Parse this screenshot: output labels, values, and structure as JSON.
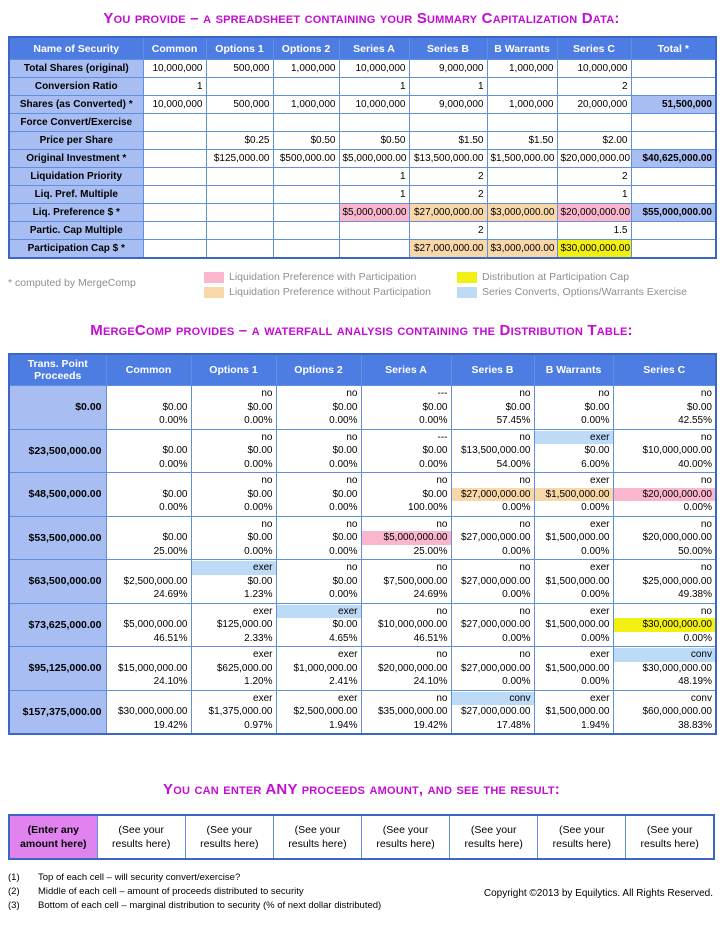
{
  "titles": {
    "provide": "You provide – a spreadsheet containing your Summary Capitalization Data:",
    "mergecomp": "MergeComp provides – a waterfall analysis containing the Distribution Table:",
    "enter": "You can enter ANY proceeds amount, and see the result:"
  },
  "colors": {
    "header_blue": "#4d7ce2",
    "label_periwinkle": "#a8bdf1",
    "pink": "#f9b6cd",
    "tan": "#f8d8a8",
    "yellow": "#f2ef12",
    "light_blue": "#bddaf6",
    "title_magenta": "#c40cd4",
    "enter_violet": "#e083ef"
  },
  "cap_table": {
    "headers": [
      "Name of Security",
      "Common",
      "Options 1",
      "Options 2",
      "Series A",
      "Series B",
      "B Warrants",
      "Series C",
      "Total *"
    ],
    "rows": [
      {
        "label": "Total Shares (original)",
        "cells": [
          "10,000,000",
          "500,000",
          "1,000,000",
          "10,000,000",
          "9,000,000",
          "1,000,000",
          "10,000,000",
          ""
        ]
      },
      {
        "label": "Conversion Ratio",
        "cells": [
          "1",
          "",
          "",
          "1",
          "1",
          "",
          "2",
          ""
        ]
      },
      {
        "label": "Shares (as Converted) *",
        "cells": [
          "10,000,000",
          "500,000",
          "1,000,000",
          "10,000,000",
          "9,000,000",
          "1,000,000",
          "20,000,000",
          {
            "text": "51,500,000",
            "bg": "periwinkle",
            "bold": true
          }
        ]
      },
      {
        "label": "Force Convert/Exercise",
        "cells": [
          "",
          "",
          "",
          "",
          "",
          "",
          "",
          ""
        ]
      },
      {
        "label": "Price per Share",
        "cells": [
          "",
          "$0.25",
          "$0.50",
          "$0.50",
          "$1.50",
          "$1.50",
          "$2.00",
          ""
        ]
      },
      {
        "label": "Original Investment *",
        "cells": [
          "",
          "$125,000.00",
          "$500,000.00",
          "$5,000,000.00",
          "$13,500,000.00",
          "$1,500,000.00",
          "$20,000,000.00",
          {
            "text": "$40,625,000.00",
            "bg": "periwinkle",
            "bold": true
          }
        ]
      },
      {
        "label": "Liquidation Priority",
        "cells": [
          "",
          "",
          "",
          "1",
          "2",
          "",
          "2",
          ""
        ]
      },
      {
        "label": "Liq. Pref. Multiple",
        "cells": [
          "",
          "",
          "",
          "1",
          "2",
          "",
          "1",
          ""
        ]
      },
      {
        "label": "Liq. Preference $ *",
        "cells": [
          "",
          "",
          "",
          {
            "text": "$5,000,000.00",
            "bg": "pink"
          },
          {
            "text": "$27,000,000.00",
            "bg": "tan"
          },
          {
            "text": "$3,000,000.00",
            "bg": "tan"
          },
          {
            "text": "$20,000,000.00",
            "bg": "pink"
          },
          {
            "text": "$55,000,000.00",
            "bg": "periwinkle",
            "bold": true
          }
        ]
      },
      {
        "label": "Partic. Cap Multiple",
        "cells": [
          "",
          "",
          "",
          "",
          "2",
          "",
          "1.5",
          ""
        ]
      },
      {
        "label": "Participation Cap $ *",
        "cells": [
          "",
          "",
          "",
          "",
          {
            "text": "$27,000,000.00",
            "bg": "tan"
          },
          {
            "text": "$3,000,000.00",
            "bg": "tan"
          },
          {
            "text": "$30,000,000.00",
            "bg": "yellow"
          },
          ""
        ]
      }
    ]
  },
  "legend": {
    "note": "* computed by MergeComp",
    "items": [
      {
        "color_key": "pink",
        "label": "Liquidation Preference with Participation"
      },
      {
        "color_key": "tan",
        "label": "Liquidation Preference without Participation"
      },
      {
        "color_key": "yellow",
        "label": "Distribution at Participation Cap"
      },
      {
        "color_key": "light_blue",
        "label": "Series Converts, Options/Warrants Exercise"
      }
    ]
  },
  "dist_table": {
    "headers": [
      "Trans. Point Proceeds",
      "Common",
      "Options 1",
      "Options 2",
      "Series A",
      "Series B",
      "B Warrants",
      "Series C"
    ],
    "rows": [
      {
        "proceeds": "$0.00",
        "cells": [
          {
            "status": "",
            "amount": "$0.00",
            "pct": "0.00%"
          },
          {
            "status": "no",
            "amount": "$0.00",
            "pct": "0.00%"
          },
          {
            "status": "no",
            "amount": "$0.00",
            "pct": "0.00%"
          },
          {
            "status": "---",
            "amount": "$0.00",
            "pct": "0.00%"
          },
          {
            "status": "no",
            "amount": "$0.00",
            "pct": "57.45%"
          },
          {
            "status": "no",
            "amount": "$0.00",
            "pct": "0.00%"
          },
          {
            "status": "no",
            "amount": "$0.00",
            "pct": "42.55%"
          }
        ]
      },
      {
        "proceeds": "$23,500,000.00",
        "cells": [
          {
            "status": "",
            "amount": "$0.00",
            "pct": "0.00%"
          },
          {
            "status": "no",
            "amount": "$0.00",
            "pct": "0.00%"
          },
          {
            "status": "no",
            "amount": "$0.00",
            "pct": "0.00%"
          },
          {
            "status": "---",
            "amount": "$0.00",
            "pct": "0.00%"
          },
          {
            "status": "no",
            "amount": "$13,500,000.00",
            "pct": "54.00%"
          },
          {
            "status": "exer",
            "status_bg": "light_blue",
            "amount": "$0.00",
            "pct": "6.00%"
          },
          {
            "status": "no",
            "amount": "$10,000,000.00",
            "pct": "40.00%"
          }
        ]
      },
      {
        "proceeds": "$48,500,000.00",
        "cells": [
          {
            "status": "",
            "amount": "$0.00",
            "pct": "0.00%"
          },
          {
            "status": "no",
            "amount": "$0.00",
            "pct": "0.00%"
          },
          {
            "status": "no",
            "amount": "$0.00",
            "pct": "0.00%"
          },
          {
            "status": "no",
            "amount": "$0.00",
            "pct": "100.00%"
          },
          {
            "status": "no",
            "amount": "$27,000,000.00",
            "amount_bg": "tan",
            "pct": "0.00%"
          },
          {
            "status": "exer",
            "amount": "$1,500,000.00",
            "amount_bg": "tan",
            "pct": "0.00%"
          },
          {
            "status": "no",
            "amount": "$20,000,000.00",
            "amount_bg": "pink",
            "pct": "0.00%"
          }
        ]
      },
      {
        "proceeds": "$53,500,000.00",
        "cells": [
          {
            "status": "",
            "amount": "$0.00",
            "pct": "25.00%"
          },
          {
            "status": "no",
            "amount": "$0.00",
            "pct": "0.00%"
          },
          {
            "status": "no",
            "amount": "$0.00",
            "pct": "0.00%"
          },
          {
            "status": "no",
            "amount": "$5,000,000.00",
            "amount_bg": "pink",
            "pct": "25.00%"
          },
          {
            "status": "no",
            "amount": "$27,000,000.00",
            "pct": "0.00%"
          },
          {
            "status": "exer",
            "amount": "$1,500,000.00",
            "pct": "0.00%"
          },
          {
            "status": "no",
            "amount": "$20,000,000.00",
            "pct": "50.00%"
          }
        ]
      },
      {
        "proceeds": "$63,500,000.00",
        "cells": [
          {
            "status": "",
            "amount": "$2,500,000.00",
            "pct": "24.69%"
          },
          {
            "status": "exer",
            "status_bg": "light_blue",
            "amount": "$0.00",
            "pct": "1.23%"
          },
          {
            "status": "no",
            "amount": "$0.00",
            "pct": "0.00%"
          },
          {
            "status": "no",
            "amount": "$7,500,000.00",
            "pct": "24.69%"
          },
          {
            "status": "no",
            "amount": "$27,000,000.00",
            "pct": "0.00%"
          },
          {
            "status": "exer",
            "amount": "$1,500,000.00",
            "pct": "0.00%"
          },
          {
            "status": "no",
            "amount": "$25,000,000.00",
            "pct": "49.38%"
          }
        ]
      },
      {
        "proceeds": "$73,625,000.00",
        "cells": [
          {
            "status": "",
            "amount": "$5,000,000.00",
            "pct": "46.51%"
          },
          {
            "status": "exer",
            "amount": "$125,000.00",
            "pct": "2.33%"
          },
          {
            "status": "exer",
            "status_bg": "light_blue",
            "amount": "$0.00",
            "pct": "4.65%"
          },
          {
            "status": "no",
            "amount": "$10,000,000.00",
            "pct": "46.51%"
          },
          {
            "status": "no",
            "amount": "$27,000,000.00",
            "pct": "0.00%"
          },
          {
            "status": "exer",
            "amount": "$1,500,000.00",
            "pct": "0.00%"
          },
          {
            "status": "no",
            "amount": "$30,000,000.00",
            "amount_bg": "yellow",
            "pct": "0.00%"
          }
        ]
      },
      {
        "proceeds": "$95,125,000.00",
        "cells": [
          {
            "status": "",
            "amount": "$15,000,000.00",
            "pct": "24.10%"
          },
          {
            "status": "exer",
            "amount": "$625,000.00",
            "pct": "1.20%"
          },
          {
            "status": "exer",
            "amount": "$1,000,000.00",
            "pct": "2.41%"
          },
          {
            "status": "no",
            "amount": "$20,000,000.00",
            "pct": "24.10%"
          },
          {
            "status": "no",
            "amount": "$27,000,000.00",
            "pct": "0.00%"
          },
          {
            "status": "exer",
            "amount": "$1,500,000.00",
            "pct": "0.00%"
          },
          {
            "status": "conv",
            "status_bg": "light_blue",
            "amount": "$30,000,000.00",
            "pct": "48.19%"
          }
        ]
      },
      {
        "proceeds": "$157,375,000.00",
        "cells": [
          {
            "status": "",
            "amount": "$30,000,000.00",
            "pct": "19.42%"
          },
          {
            "status": "exer",
            "amount": "$1,375,000.00",
            "pct": "0.97%"
          },
          {
            "status": "exer",
            "amount": "$2,500,000.00",
            "pct": "1.94%"
          },
          {
            "status": "no",
            "amount": "$35,000,000.00",
            "pct": "19.42%"
          },
          {
            "status": "conv",
            "status_bg": "light_blue",
            "amount": "$27,000,000.00",
            "pct": "17.48%"
          },
          {
            "status": "exer",
            "amount": "$1,500,000.00",
            "pct": "1.94%"
          },
          {
            "status": "conv",
            "amount": "$60,000,000.00",
            "pct": "38.83%"
          }
        ]
      }
    ]
  },
  "enter_row": {
    "input_line1": "(Enter any",
    "input_line2": "amount here)",
    "result_line1": "(See your",
    "result_line2": "results here)",
    "result_count": 7
  },
  "footnotes": [
    {
      "num": "(1)",
      "text": "Top of each cell – will security convert/exercise?"
    },
    {
      "num": "(2)",
      "text": "Middle of each cell – amount of proceeds distributed to security"
    },
    {
      "num": "(3)",
      "text": "Bottom of each cell – marginal distribution to security (% of next dollar distributed)"
    }
  ],
  "copyright": "Copyright ©2013 by Equilytics. All Rights Reserved."
}
